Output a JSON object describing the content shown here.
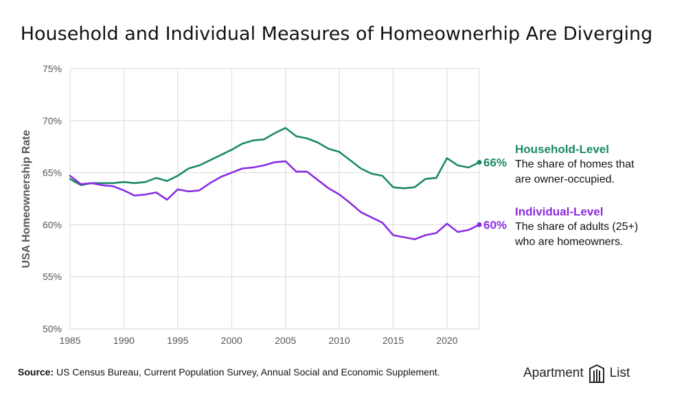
{
  "chart_data": {
    "type": "line",
    "title": "Household and Individual Measures of Homeownerhip Are Diverging",
    "ylabel": "USA Homeownership Rate",
    "xlabel": "",
    "xlim": [
      1985,
      2023
    ],
    "ylim": [
      50,
      75
    ],
    "x_ticks": [
      1985,
      1990,
      1995,
      2000,
      2005,
      2010,
      2015,
      2020
    ],
    "x_tick_labels": [
      "1985",
      "1990",
      "1995",
      "2000",
      "2005",
      "2010",
      "2015",
      "2020"
    ],
    "y_ticks": [
      50,
      55,
      60,
      65,
      70,
      75
    ],
    "y_tick_labels": [
      "50%",
      "55%",
      "60%",
      "65%",
      "70%",
      "75%"
    ],
    "grid": true,
    "x": [
      1985,
      1986,
      1987,
      1988,
      1989,
      1990,
      1991,
      1992,
      1993,
      1994,
      1995,
      1996,
      1997,
      1998,
      1999,
      2000,
      2001,
      2002,
      2003,
      2004,
      2005,
      2006,
      2007,
      2008,
      2009,
      2010,
      2011,
      2012,
      2013,
      2014,
      2015,
      2016,
      2017,
      2018,
      2019,
      2020,
      2021,
      2022,
      2023
    ],
    "series": [
      {
        "name": "Household-Level",
        "color": "#1a8a5f",
        "end_label": "66%",
        "description": "The share of homes that are owner-occupied.",
        "values": [
          64.4,
          63.8,
          64.0,
          64.0,
          64.0,
          64.1,
          64.0,
          64.1,
          64.5,
          64.2,
          64.7,
          65.4,
          65.7,
          66.2,
          66.7,
          67.2,
          67.8,
          68.1,
          68.2,
          68.8,
          69.3,
          68.5,
          68.3,
          67.9,
          67.3,
          67.0,
          66.2,
          65.4,
          64.9,
          64.7,
          63.6,
          63.5,
          63.6,
          64.4,
          64.5,
          66.4,
          65.7,
          65.5,
          66.0
        ]
      },
      {
        "name": "Individual-Level",
        "color": "#8a2be2",
        "end_label": "60%",
        "description_line1": "The share of adults (25+)",
        "description_line2": "who are homeowners.",
        "values": [
          64.7,
          63.9,
          64.0,
          63.8,
          63.7,
          63.3,
          62.8,
          62.9,
          63.1,
          62.4,
          63.4,
          63.2,
          63.3,
          64.0,
          64.6,
          65.0,
          65.4,
          65.5,
          65.7,
          66.0,
          66.1,
          65.1,
          65.1,
          64.3,
          63.5,
          62.9,
          62.1,
          61.2,
          60.7,
          60.2,
          59.0,
          58.8,
          58.6,
          59.0,
          59.2,
          60.1,
          59.3,
          59.5,
          60.0
        ]
      }
    ],
    "annotations": {
      "household_title": "Household-Level",
      "household_text_1": "The share of homes that",
      "household_text_2": "are owner-occupied.",
      "individual_title": "Individual-Level",
      "individual_text_1": "The share of adults (25+)",
      "individual_text_2": "who are homeowners."
    }
  },
  "source": {
    "label": "Source:",
    "text": " US Census Bureau, Current Population Survey, Annual Social and Economic Supplement."
  },
  "logo": {
    "left": "Apartment",
    "right": "List"
  }
}
